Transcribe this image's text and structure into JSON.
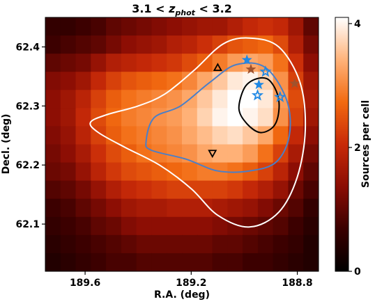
{
  "chart_data": {
    "type": "heatmap",
    "title": "3.1 < z_phot < 3.2",
    "title_parts": {
      "pre": "3.1 < ",
      "var": "z",
      "sub": "phot",
      "post": " < 3.2"
    },
    "xlabel": "R.A. (deg)",
    "ylabel": "Decl. (deg)",
    "colorbar_label": "Sources per cell",
    "x_inverted": true,
    "xlim": [
      189.75,
      188.72
    ],
    "ylim": [
      62.02,
      62.45
    ],
    "clim": [
      0,
      4.1
    ],
    "x_ticks": [
      189.6,
      189.2,
      188.8
    ],
    "x_tick_labels": [
      "189.6",
      "189.2",
      "188.8"
    ],
    "y_ticks": [
      62.1,
      62.2,
      62.3,
      62.4
    ],
    "y_tick_labels": [
      "62.1",
      "62.2",
      "62.3",
      "62.4"
    ],
    "colorbar_ticks": [
      0,
      2,
      4
    ],
    "colorbar_tick_labels": [
      "0",
      "2",
      "4"
    ],
    "colormap": [
      "#000000",
      "#3a0000",
      "#8a0d04",
      "#c82a08",
      "#f26a10",
      "#ffb37a",
      "#ffffff"
    ],
    "grid": {
      "ra_range": [
        189.75,
        188.72
      ],
      "dec_range": [
        62.02,
        62.45
      ],
      "nx": 18,
      "ny": 14,
      "values_top_to_bottom": [
        [
          0.6,
          0.6,
          0.7,
          0.8,
          1.0,
          1.1,
          1.2,
          1.3,
          1.4,
          1.5,
          1.6,
          1.6,
          1.8,
          2.0,
          2.1,
          2.0,
          1.6,
          1.0
        ],
        [
          0.7,
          0.8,
          0.9,
          1.0,
          1.2,
          1.4,
          1.5,
          1.6,
          1.8,
          1.9,
          2.1,
          2.3,
          2.5,
          2.6,
          2.7,
          2.4,
          1.8,
          1.2
        ],
        [
          1.0,
          1.1,
          1.2,
          1.5,
          1.8,
          1.9,
          2.0,
          2.1,
          2.2,
          2.4,
          2.6,
          2.9,
          3.2,
          3.3,
          3.2,
          2.8,
          2.1,
          1.4
        ],
        [
          1.3,
          1.4,
          1.6,
          2.0,
          2.3,
          2.5,
          2.6,
          2.7,
          2.8,
          3.0,
          3.3,
          3.6,
          3.9,
          4.0,
          3.7,
          3.1,
          2.3,
          1.6
        ],
        [
          1.4,
          1.6,
          1.9,
          2.3,
          2.6,
          2.8,
          2.9,
          3.0,
          3.1,
          3.3,
          3.6,
          3.9,
          4.1,
          4.1,
          3.9,
          3.2,
          2.4,
          1.7
        ],
        [
          1.4,
          1.6,
          2.0,
          2.4,
          2.7,
          2.9,
          3.0,
          3.1,
          3.2,
          3.4,
          3.7,
          4.0,
          4.1,
          4.0,
          3.8,
          3.1,
          2.3,
          1.6
        ],
        [
          1.3,
          1.5,
          1.9,
          2.3,
          2.6,
          2.8,
          2.9,
          3.0,
          3.1,
          3.3,
          3.5,
          3.7,
          3.8,
          3.6,
          3.3,
          2.7,
          2.0,
          1.4
        ],
        [
          1.2,
          1.4,
          1.7,
          2.1,
          2.4,
          2.6,
          2.8,
          2.9,
          3.0,
          3.1,
          3.3,
          3.4,
          3.4,
          3.2,
          2.8,
          2.3,
          1.7,
          1.2
        ],
        [
          1.1,
          1.2,
          1.5,
          1.9,
          2.2,
          2.4,
          2.5,
          2.6,
          2.7,
          2.8,
          2.9,
          2.9,
          2.8,
          2.6,
          2.3,
          1.9,
          1.4,
          1.0
        ],
        [
          0.9,
          1.0,
          1.2,
          1.5,
          1.8,
          2.0,
          2.1,
          2.2,
          2.3,
          2.3,
          2.3,
          2.3,
          2.2,
          2.0,
          1.8,
          1.5,
          1.1,
          0.8
        ],
        [
          0.7,
          0.8,
          1.0,
          1.2,
          1.4,
          1.6,
          1.7,
          1.7,
          1.8,
          1.8,
          1.8,
          1.7,
          1.6,
          1.5,
          1.3,
          1.1,
          0.9,
          0.6
        ],
        [
          0.6,
          0.7,
          0.8,
          1.0,
          1.1,
          1.3,
          1.4,
          1.4,
          1.4,
          1.4,
          1.4,
          1.3,
          1.2,
          1.1,
          1.0,
          0.9,
          0.7,
          0.5
        ],
        [
          0.5,
          0.6,
          0.7,
          0.8,
          0.9,
          1.0,
          1.1,
          1.1,
          1.1,
          1.1,
          1.1,
          1.0,
          1.0,
          0.9,
          0.8,
          0.7,
          0.6,
          0.4
        ],
        [
          0.4,
          0.5,
          0.6,
          0.7,
          0.8,
          0.8,
          0.9,
          0.9,
          0.9,
          0.9,
          0.9,
          0.8,
          0.8,
          0.7,
          0.7,
          0.6,
          0.5,
          0.4
        ]
      ]
    },
    "contours": [
      {
        "color": "#ffffff",
        "points": [
          [
            189.58,
            62.272
          ],
          [
            189.52,
            62.285
          ],
          [
            189.4,
            62.3
          ],
          [
            189.3,
            62.32
          ],
          [
            189.19,
            62.36
          ],
          [
            189.08,
            62.405
          ],
          [
            188.98,
            62.415
          ],
          [
            188.87,
            62.4
          ],
          [
            188.79,
            62.34
          ],
          [
            188.77,
            62.26
          ],
          [
            188.8,
            62.18
          ],
          [
            188.87,
            62.12
          ],
          [
            188.98,
            62.095
          ],
          [
            189.1,
            62.115
          ],
          [
            189.2,
            62.16
          ],
          [
            189.32,
            62.2
          ],
          [
            189.45,
            62.23
          ],
          [
            189.55,
            62.255
          ]
        ]
      },
      {
        "color": "#4a7fc8",
        "points": [
          [
            189.37,
            62.24
          ],
          [
            189.34,
            62.28
          ],
          [
            189.24,
            62.3
          ],
          [
            189.13,
            62.34
          ],
          [
            189.03,
            62.37
          ],
          [
            188.92,
            62.365
          ],
          [
            188.84,
            62.31
          ],
          [
            188.83,
            62.25
          ],
          [
            188.88,
            62.205
          ],
          [
            188.98,
            62.19
          ],
          [
            189.1,
            62.19
          ],
          [
            189.22,
            62.21
          ],
          [
            189.35,
            62.225
          ]
        ]
      },
      {
        "color": "#000000",
        "points": [
          [
            189.02,
            62.295
          ],
          [
            189.0,
            62.33
          ],
          [
            188.96,
            62.345
          ],
          [
            188.91,
            62.345
          ],
          [
            188.875,
            62.32
          ],
          [
            188.87,
            62.29
          ],
          [
            188.89,
            62.265
          ],
          [
            188.94,
            62.255
          ],
          [
            188.99,
            62.27
          ]
        ]
      }
    ],
    "markers": [
      {
        "type": "triangle-up-open",
        "color": "#000000",
        "ra": 189.1,
        "dec": 62.365
      },
      {
        "type": "triangle-down-open",
        "color": "#000000",
        "ra": 189.12,
        "dec": 62.22
      },
      {
        "type": "star-filled",
        "color": "#1e88e5",
        "ra": 188.99,
        "dec": 62.378
      },
      {
        "type": "star-filled",
        "color": "#a0522d",
        "ra": 188.975,
        "dec": 62.362
      },
      {
        "type": "star-open",
        "color": "#1e88e5",
        "ra": 188.92,
        "dec": 62.358
      },
      {
        "type": "star-filled",
        "color": "#1e88e5",
        "ra": 188.945,
        "dec": 62.336
      },
      {
        "type": "star-open",
        "color": "#1e88e5",
        "ra": 188.95,
        "dec": 62.318
      },
      {
        "type": "star-open",
        "color": "#1e88e5",
        "ra": 188.865,
        "dec": 62.315
      },
      {
        "type": "star-filled",
        "color": "#a0522d",
        "ra": 188.81,
        "dec": 62.338
      }
    ]
  }
}
